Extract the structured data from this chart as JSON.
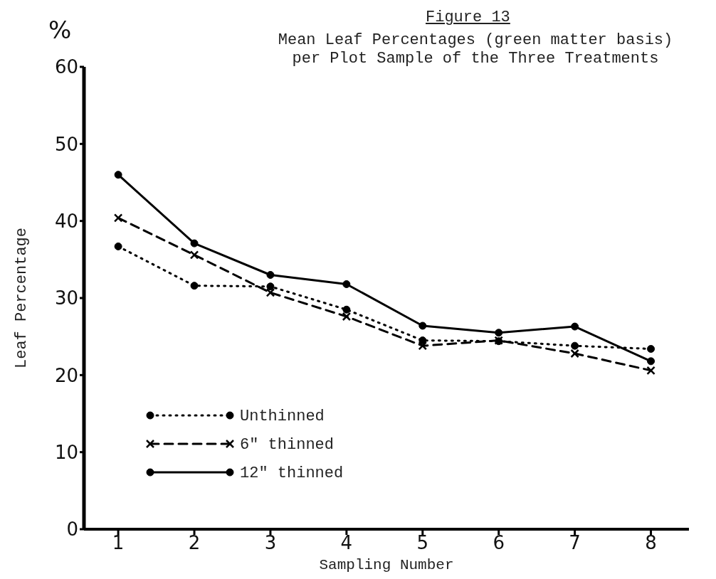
{
  "chart_data": {
    "type": "line",
    "title": "Figure 13",
    "subtitle": "Mean Leaf Percentages (green matter basis)\nper Plot Sample of the Three Treatments",
    "xlabel": "Sampling Number",
    "ylabel": "Leaf Percentage",
    "annotations": [
      "%"
    ],
    "x": [
      1,
      2,
      3,
      4,
      5,
      6,
      7,
      8
    ],
    "xlim": [
      0.55,
      8.5
    ],
    "xticks": [
      1,
      2,
      3,
      4,
      5,
      6,
      7,
      8
    ],
    "ylim": [
      0,
      60
    ],
    "yticks": [
      0,
      10,
      20,
      30,
      40,
      50,
      60
    ],
    "series": [
      {
        "name": "Unthinned",
        "color": "#000000",
        "marker": "circle",
        "line_style": "dotted",
        "values": [
          36.7,
          31.6,
          31.5,
          28.5,
          24.5,
          24.4,
          23.8,
          23.4
        ]
      },
      {
        "name": "6\"  thinned",
        "color": "#000000",
        "marker": "cross",
        "line_style": "dashed",
        "values": [
          40.4,
          35.6,
          30.7,
          27.6,
          23.8,
          24.5,
          22.8,
          20.6
        ]
      },
      {
        "name": "12\" thinned",
        "color": "#000000",
        "marker": "circle",
        "line_style": "solid",
        "values": [
          46.0,
          37.1,
          33.0,
          31.8,
          26.4,
          25.5,
          26.3,
          21.8
        ]
      }
    ],
    "grid": false,
    "legend": "bottom left"
  }
}
